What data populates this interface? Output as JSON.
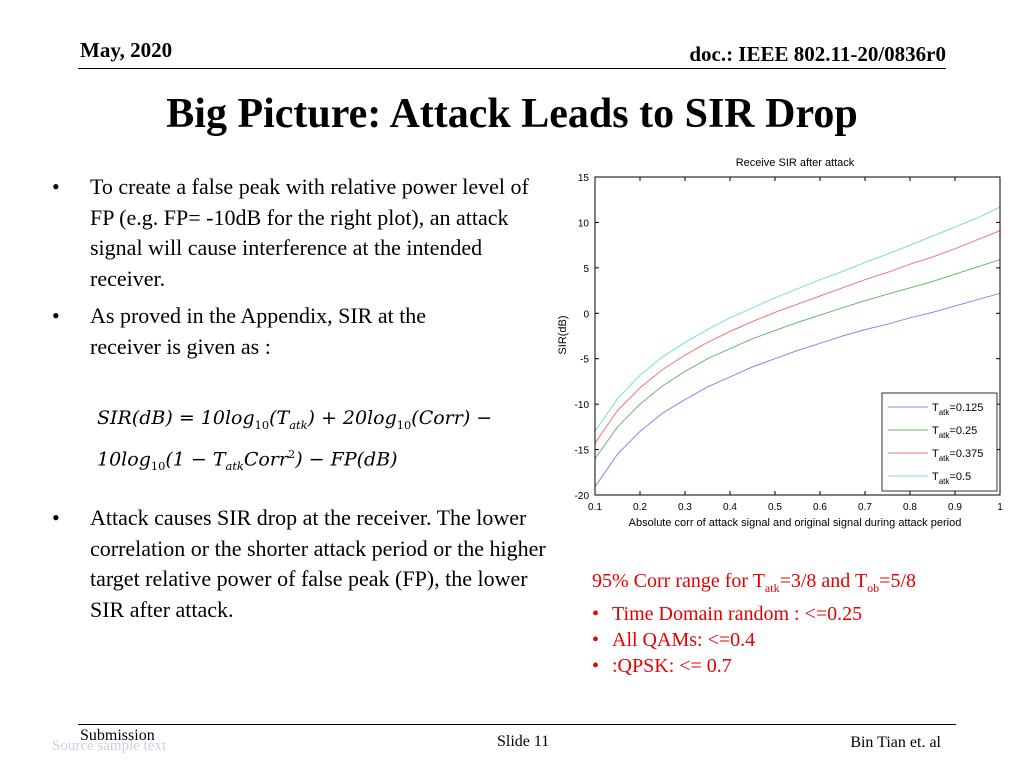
{
  "header": {
    "date": "May, 2020",
    "doc": "doc.: IEEE 802.11-20/0836r0"
  },
  "title": "Big Picture: Attack Leads to SIR Drop",
  "bullets": [
    "To create a false peak with relative power level of FP (e.g. FP= -10dB for the right plot), an attack signal will cause interference at the intended receiver.",
    "As proved in the Appendix, SIR at the receiver is given as :",
    "Attack causes SIR drop at the receiver. The lower correlation or the shorter attack period or the higher target relative power of false peak (FP), the lower SIR after attack."
  ],
  "bullet_symbol": "•",
  "equation": {
    "line1_a": "SIR(dB) = 10log",
    "sub_10": "10",
    "line1_b": "(T",
    "sub_atk": "atk",
    "line1_c": ") + 20log",
    "line1_d": "(Corr) −",
    "line2_a": "10log",
    "line2_b": "(1 − T",
    "line2_c": "Corr",
    "sup_2": "2",
    "line2_d": ") − FP(dB)"
  },
  "chart_data": {
    "type": "line",
    "title": "Receive SIR after attack",
    "xlabel": "Absolute corr of attack signal and original signal during attack period",
    "ylabel": "SIR(dB)",
    "xlim": [
      0.1,
      1
    ],
    "ylim": [
      -20,
      15
    ],
    "xticks": [
      0.1,
      0.2,
      0.3,
      0.4,
      0.5,
      0.6,
      0.7,
      0.8,
      0.9,
      1
    ],
    "yticks": [
      -20,
      -15,
      -10,
      -5,
      0,
      5,
      10,
      15
    ],
    "x": [
      0.1,
      0.15,
      0.2,
      0.25,
      0.3,
      0.35,
      0.4,
      0.45,
      0.5,
      0.55,
      0.6,
      0.65,
      0.7,
      0.75,
      0.8,
      0.85,
      0.9,
      0.95,
      1.0
    ],
    "series": [
      {
        "name": "=0.125",
        "name_sub": "atk",
        "color": "#8888ee",
        "values": [
          -19.1,
          -15.5,
          -13.0,
          -11.0,
          -9.5,
          -8.1,
          -7.0,
          -5.9,
          -5.0,
          -4.1,
          -3.3,
          -2.5,
          -1.8,
          -1.2,
          -0.5,
          0.1,
          0.8,
          1.5,
          2.2
        ]
      },
      {
        "name": "=0.25",
        "name_sub": "atk",
        "color": "#66bb66",
        "values": [
          -16.0,
          -12.5,
          -10.0,
          -8.0,
          -6.4,
          -5.0,
          -3.9,
          -2.8,
          -1.9,
          -1.0,
          -0.2,
          0.6,
          1.4,
          2.1,
          2.8,
          3.5,
          4.3,
          5.1,
          5.9
        ]
      },
      {
        "name": "=0.375",
        "name_sub": "atk",
        "color": "#ee7777",
        "values": [
          -14.3,
          -10.7,
          -8.2,
          -6.2,
          -4.6,
          -3.2,
          -2.0,
          -0.9,
          0.1,
          1.0,
          1.9,
          2.8,
          3.7,
          4.5,
          5.4,
          6.2,
          7.1,
          8.1,
          9.1
        ]
      },
      {
        "name": "=0.5",
        "name_sub": "atk",
        "color": "#77dddd",
        "values": [
          -13.0,
          -9.4,
          -6.8,
          -4.8,
          -3.2,
          -1.8,
          -0.5,
          0.6,
          1.7,
          2.7,
          3.7,
          4.6,
          5.6,
          6.5,
          7.5,
          8.5,
          9.5,
          10.5,
          11.7
        ]
      }
    ],
    "legend_label": "T",
    "legend_position": "bottom-right",
    "grid": false
  },
  "notes": {
    "title_a": "95% Corr range for T",
    "title_sub1": "atk",
    "title_b": "=3/8 and T",
    "title_sub2": "ob",
    "title_c": "=5/8",
    "items": [
      "Time Domain random : <=0.25",
      "All QAMs: <=0.4",
      ":QPSK:  <= 0.7"
    ]
  },
  "footer": {
    "submission": "Submission",
    "source": "Source sample text",
    "slide": "Slide 11",
    "author": "Bin Tian et. al"
  }
}
